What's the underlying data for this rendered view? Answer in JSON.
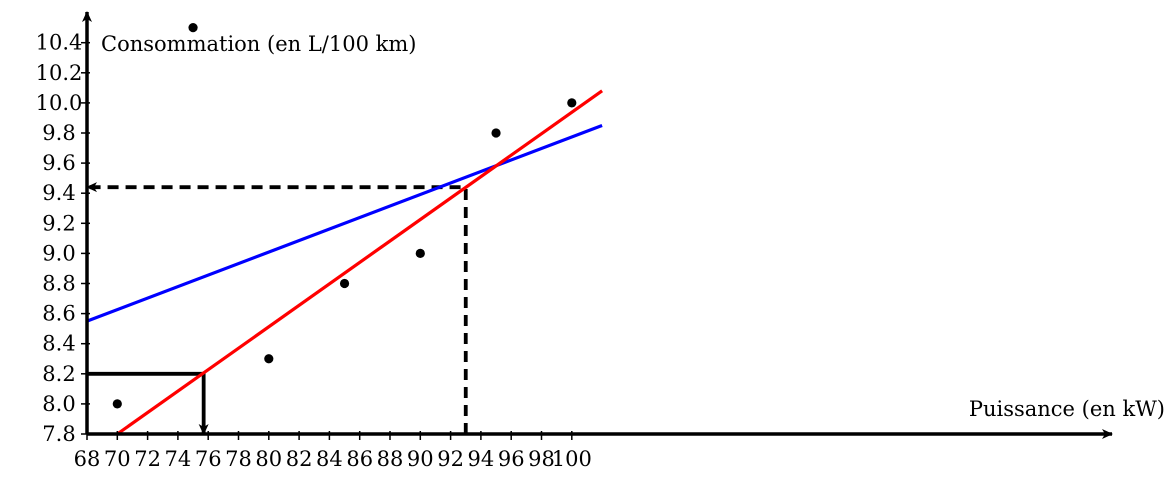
{
  "chart_data": {
    "type": "scatter",
    "title": "",
    "xlabel": "Puissance (en kW)",
    "ylabel": "Consommation (en L/100 km)",
    "xlim": [
      68,
      102
    ],
    "ylim": [
      7.8,
      10.6
    ],
    "x_ticks": [
      68,
      70,
      72,
      74,
      76,
      78,
      80,
      82,
      84,
      86,
      88,
      90,
      92,
      94,
      96,
      98,
      100
    ],
    "y_ticks": [
      7.8,
      8.0,
      8.2,
      8.4,
      8.6,
      8.8,
      9.0,
      9.2,
      9.4,
      9.6,
      9.8,
      10.0,
      10.2,
      10.4
    ],
    "y_tick_labels": [
      "7.8",
      "8.0",
      "8.2",
      "8.4",
      "8.6",
      "8.8",
      "9.0",
      "9.2",
      "9.4",
      "9.6",
      "9.8",
      "10.0",
      "10.2",
      "10.4"
    ],
    "points": [
      {
        "x": 70,
        "y": 8.0
      },
      {
        "x": 75,
        "y": 10.5
      },
      {
        "x": 80,
        "y": 8.3
      },
      {
        "x": 85,
        "y": 8.8
      },
      {
        "x": 90,
        "y": 9.0
      },
      {
        "x": 95,
        "y": 9.8
      },
      {
        "x": 100,
        "y": 10.0
      }
    ],
    "lines": [
      {
        "color": "#0000ff",
        "from": [
          68,
          8.55
        ],
        "to": [
          102,
          9.85
        ]
      },
      {
        "color": "#ff0000",
        "from": [
          70,
          7.8
        ],
        "to": [
          102,
          10.08
        ]
      }
    ],
    "guides": [
      {
        "style": "dashed",
        "from": [
          93,
          7.8
        ],
        "corner": [
          93,
          9.44
        ],
        "to": [
          68,
          9.44
        ],
        "arrow_at_end": true
      },
      {
        "style": "solid",
        "from": [
          68,
          8.2
        ],
        "corner": [
          75.7,
          8.2
        ],
        "to": [
          75.7,
          7.8
        ],
        "arrow_at_end": true
      }
    ],
    "grid": false,
    "colors": {
      "axis": "#000000",
      "points": "#000000",
      "blue_line": "#0000ff",
      "red_line": "#ff0000"
    }
  }
}
